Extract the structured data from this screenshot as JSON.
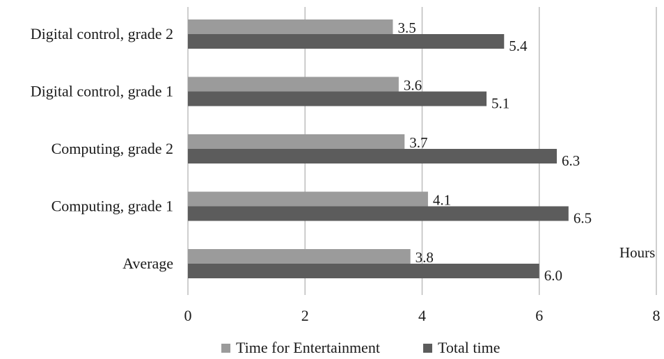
{
  "chart_data": {
    "type": "bar",
    "orientation": "horizontal",
    "categories": [
      "Digital control, grade 2",
      "Digital control, grade 1",
      "Computing, grade 2",
      "Computing, grade 1",
      "Average"
    ],
    "series": [
      {
        "name": "Time for Entertainment",
        "color": "#9b9b9b",
        "values": [
          3.5,
          3.6,
          3.7,
          4.1,
          3.8
        ],
        "labels": [
          "3.5",
          "3.6",
          "3.7",
          "4.1",
          "3.8"
        ]
      },
      {
        "name": "Total time",
        "color": "#5c5c5c",
        "values": [
          5.4,
          5.1,
          6.3,
          6.5,
          6.0
        ],
        "labels": [
          "5.4",
          "5.1",
          "6.3",
          "6.5",
          "6.0"
        ]
      }
    ],
    "xlim": [
      0,
      8
    ],
    "xticks": [
      0,
      2,
      4,
      6,
      8
    ],
    "xtick_labels": [
      "0",
      "2",
      "4",
      "6",
      "8"
    ],
    "xunit": "Hours",
    "grid": true,
    "legend_position": "bottom"
  }
}
